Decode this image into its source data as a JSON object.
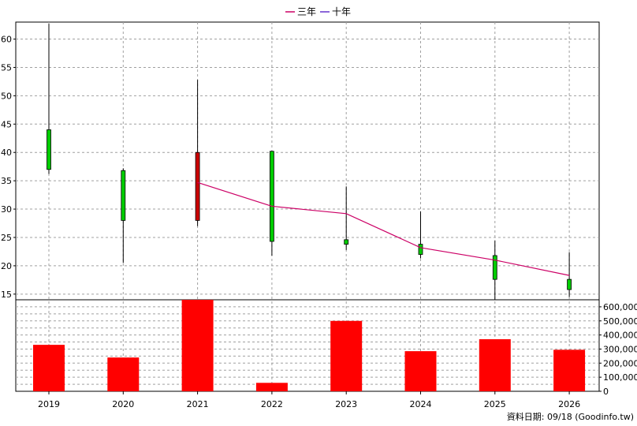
{
  "legend": [
    {
      "label": "三年",
      "color": "#cc0066"
    },
    {
      "label": "十年",
      "color": "#6633cc"
    }
  ],
  "footer": "資料日期: 09/18  (Goodinfo.tw)",
  "chart_data": {
    "type": "candlestick-volume",
    "x": [
      "2019",
      "2020",
      "2021",
      "2022",
      "2023",
      "2024",
      "2025",
      "2026"
    ],
    "price": {
      "ylim": [
        14,
        63
      ],
      "yticks": [
        15,
        20,
        25,
        30,
        35,
        40,
        45,
        50,
        55,
        60
      ],
      "candles": [
        {
          "open": 37,
          "close": 44,
          "high": 62.7,
          "low": 36.2,
          "color": "#00cc00"
        },
        {
          "open": 28,
          "close": 36.8,
          "high": 37.2,
          "low": 20.5,
          "color": "#00cc00"
        },
        {
          "open": 40,
          "close": 28,
          "high": 52.8,
          "low": 27,
          "color": "#cc0000"
        },
        {
          "open": 24.3,
          "close": 40.2,
          "high": 40.3,
          "low": 21.8,
          "color": "#00cc00"
        },
        {
          "open": 23.8,
          "close": 24.6,
          "high": 34,
          "low": 22.8,
          "color": "#00cc00"
        },
        {
          "open": 22,
          "close": 23.8,
          "high": 29.6,
          "low": 21.3,
          "color": "#00cc00"
        },
        {
          "open": 17.6,
          "close": 21.8,
          "high": 24.4,
          "low": 14,
          "color": "#00cc00"
        },
        {
          "open": 15.8,
          "close": 17.6,
          "high": 22.4,
          "low": 14.5,
          "color": "#00cc00"
        }
      ],
      "three_year_line": {
        "name": "三年",
        "points": [
          {
            "x": "2021",
            "y": 34.7
          },
          {
            "x": "2022",
            "y": 30.5
          },
          {
            "x": "2023",
            "y": 29.2
          },
          {
            "x": "2024",
            "y": 23.2
          },
          {
            "x": "2025",
            "y": 21
          },
          {
            "x": "2026",
            "y": 18.3
          }
        ]
      }
    },
    "volume": {
      "ylim": [
        0,
        650000
      ],
      "yticks": [
        "0",
        "100,000",
        "200,000",
        "300,000",
        "400,000",
        "500,000",
        "600,000"
      ],
      "ytick_values": [
        0,
        100000,
        200000,
        300000,
        400000,
        500000,
        600000
      ],
      "values": [
        330000,
        240000,
        670000,
        60000,
        500000,
        285000,
        370000,
        295000
      ],
      "color": "#ff0000"
    },
    "grid": true,
    "legend_position": "top-center"
  }
}
